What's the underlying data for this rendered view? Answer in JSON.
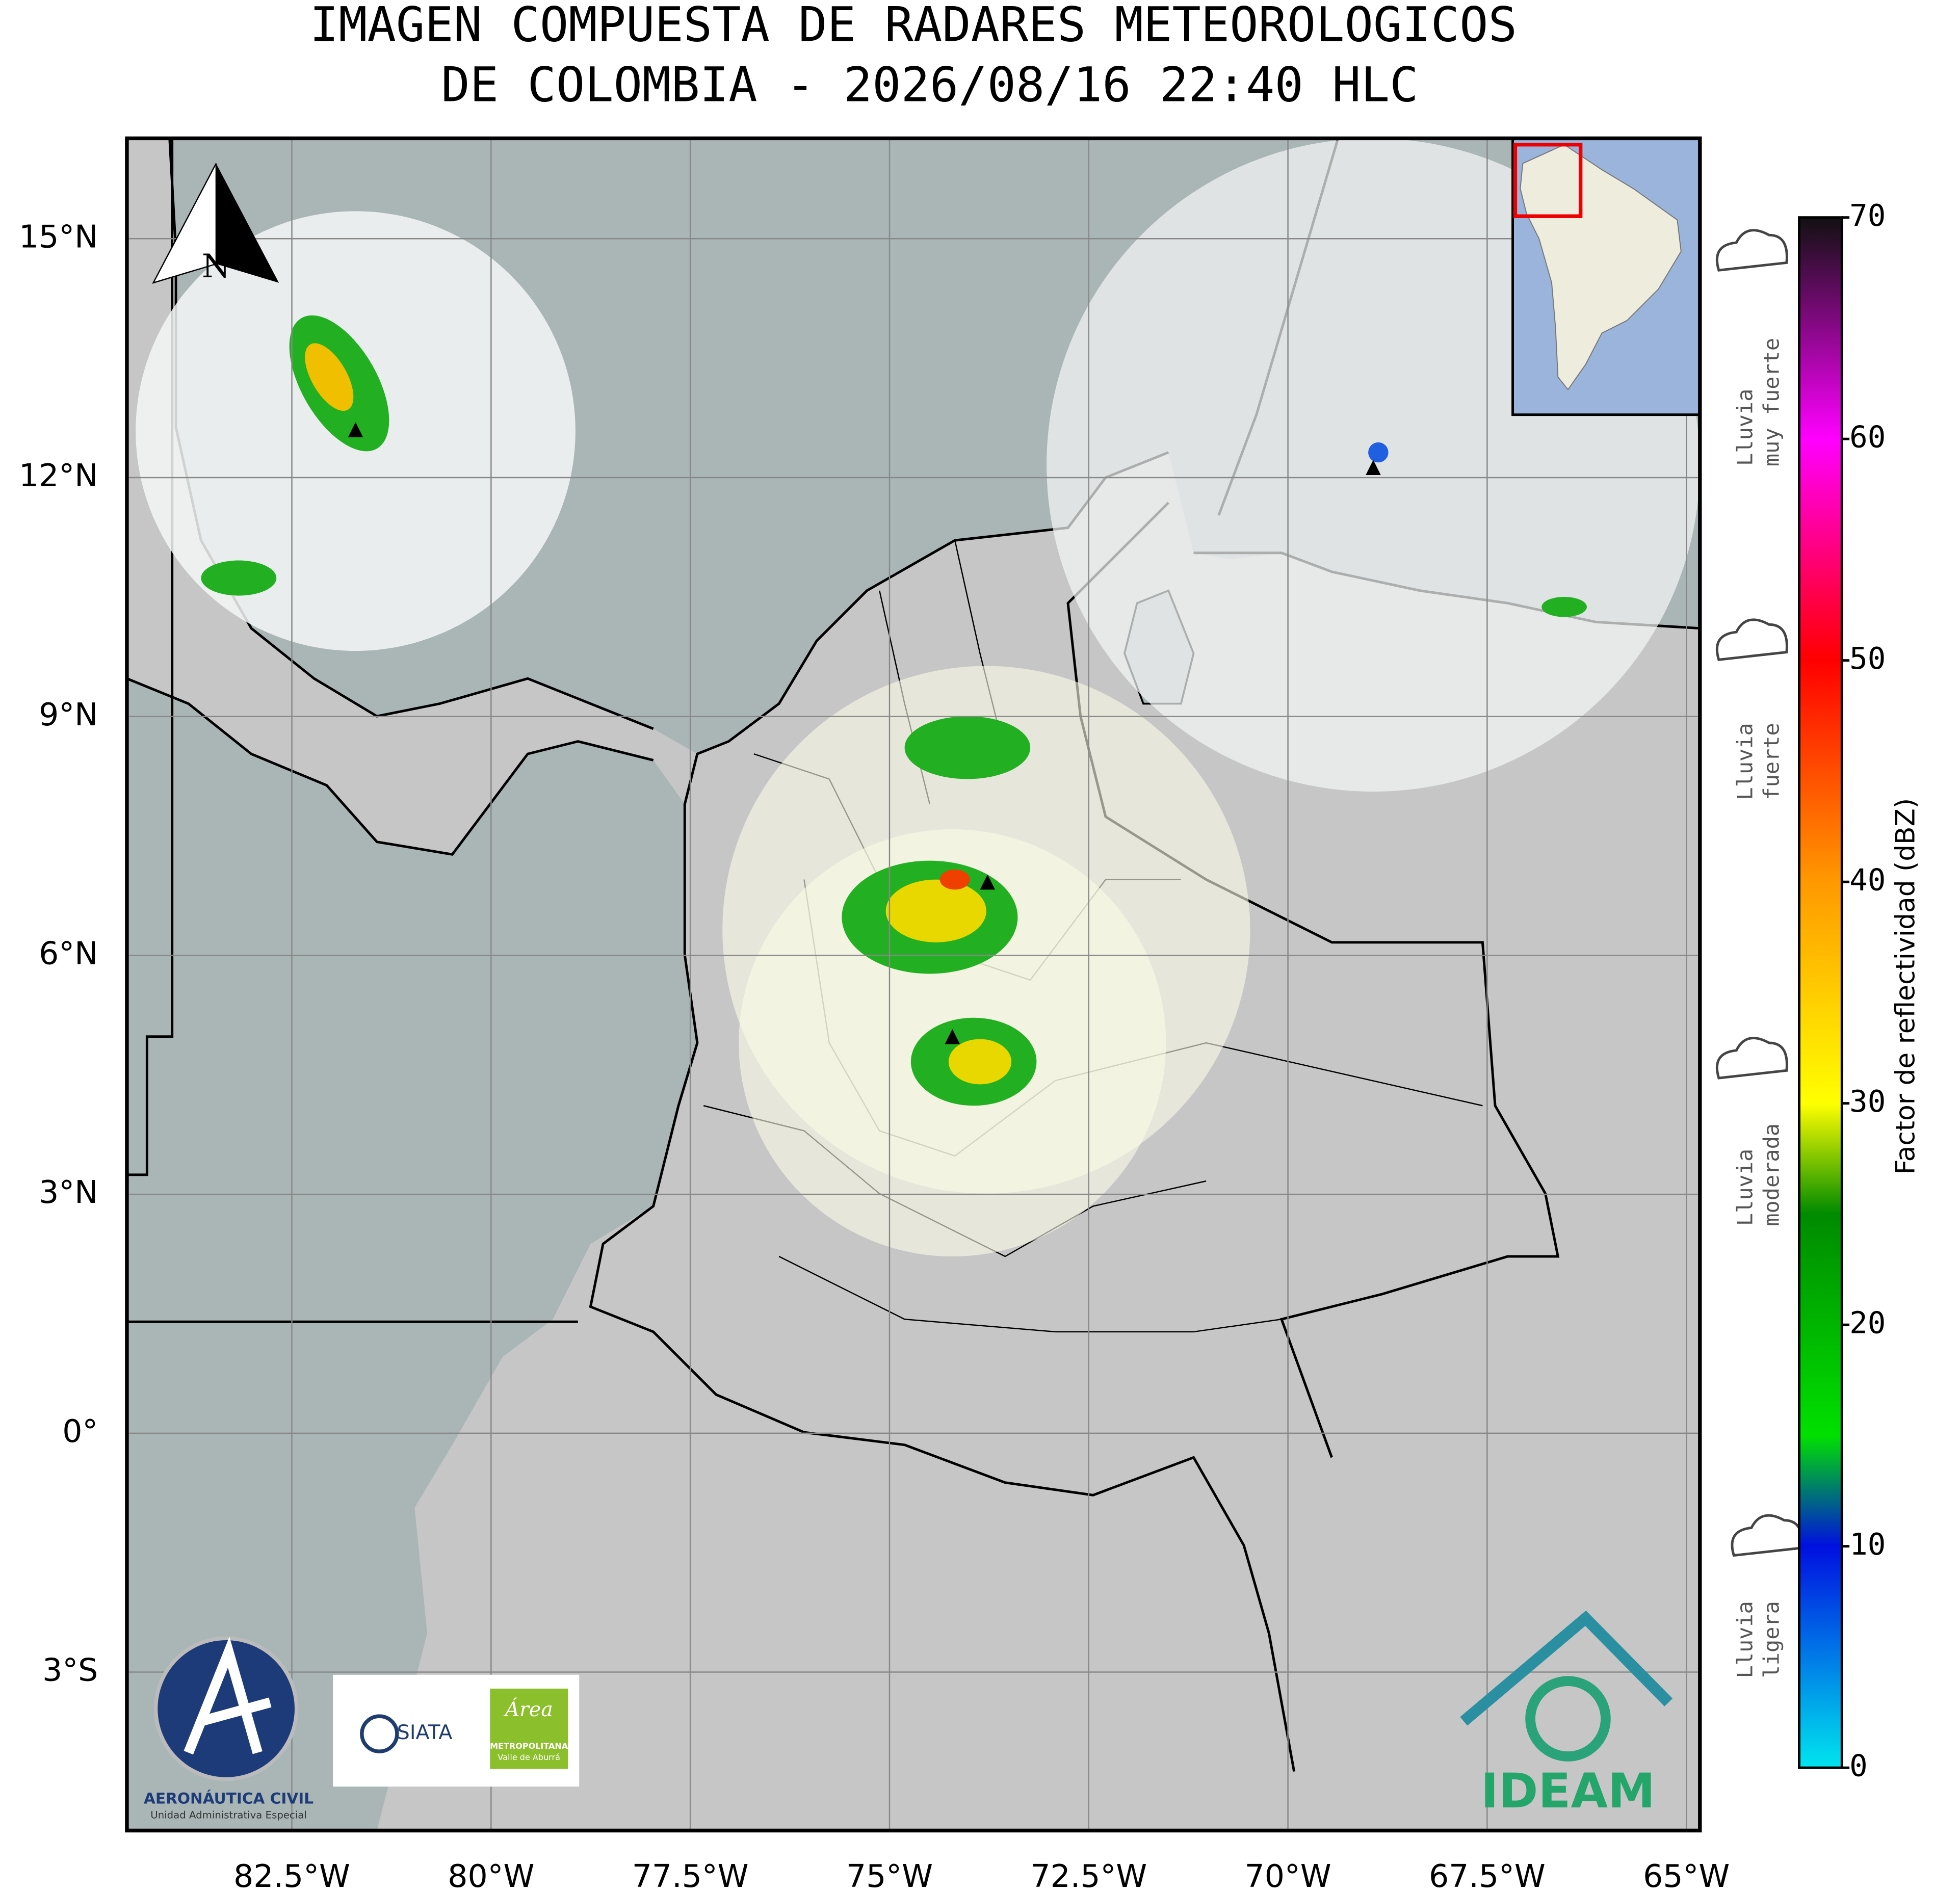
{
  "title": {
    "lines": [
      "IMAGEN COMPUESTA DE RADARES METEOROLOGICOS",
      "DE COLOMBIA - 2026/08/16 22:40 HLC"
    ]
  },
  "map": {
    "lonlim": [
      -84.57,
      -64.83
    ],
    "latlim": [
      -4.99,
      16.26
    ],
    "lon_ticks": [
      {
        "value": -82.5,
        "label": "82.5°W"
      },
      {
        "value": -80,
        "label": "80°W"
      },
      {
        "value": -77.5,
        "label": "77.5°W"
      },
      {
        "value": -75,
        "label": "75°W"
      },
      {
        "value": -72.5,
        "label": "72.5°W"
      },
      {
        "value": -70,
        "label": "70°W"
      },
      {
        "value": -67.5,
        "label": "67.5°W"
      },
      {
        "value": -65,
        "label": "65°W"
      }
    ],
    "lat_ticks": [
      {
        "value": 15,
        "label": "15°N"
      },
      {
        "value": 12,
        "label": "12°N"
      },
      {
        "value": 9,
        "label": "9°N"
      },
      {
        "value": 6,
        "label": "6°N"
      },
      {
        "value": 3,
        "label": "3°N"
      },
      {
        "value": 0,
        "label": "0°"
      },
      {
        "value": -3,
        "label": "3°S"
      }
    ],
    "north_label": "N",
    "grid": true
  },
  "colorbar": {
    "label": "Factor de reflectividad (dBZ)",
    "range": [
      0,
      70
    ],
    "ticks": [
      0,
      10,
      20,
      30,
      40,
      50,
      60,
      70
    ],
    "stops": [
      {
        "value": 0,
        "color": "#00e5ee"
      },
      {
        "value": 10,
        "color": "#0010e0"
      },
      {
        "value": 15,
        "color": "#00e000"
      },
      {
        "value": 25,
        "color": "#008a00"
      },
      {
        "value": 30,
        "color": "#ffff00"
      },
      {
        "value": 40,
        "color": "#ff9900"
      },
      {
        "value": 50,
        "color": "#ff0000"
      },
      {
        "value": 60,
        "color": "#ff00ff"
      },
      {
        "value": 70,
        "color": "#111111"
      }
    ]
  },
  "legend": [
    {
      "lines": [
        "Lluvia",
        "muy fuerte"
      ]
    },
    {
      "lines": [
        "Lluvia",
        "fuerte"
      ]
    },
    {
      "lines": [
        "Lluvia",
        "moderada"
      ]
    },
    {
      "lines": [
        "Lluvia",
        "ligera"
      ]
    }
  ],
  "logos": {
    "aerocivil": "AERONÁUTICA CIVIL",
    "aerocivil_sub": "Unidad Administrativa Especial",
    "siata": "SIATA",
    "area": "Área",
    "area_sub1": "METROPOLITANA",
    "area_sub2": "Valle de Aburrá",
    "ideam": "IDEAM"
  }
}
